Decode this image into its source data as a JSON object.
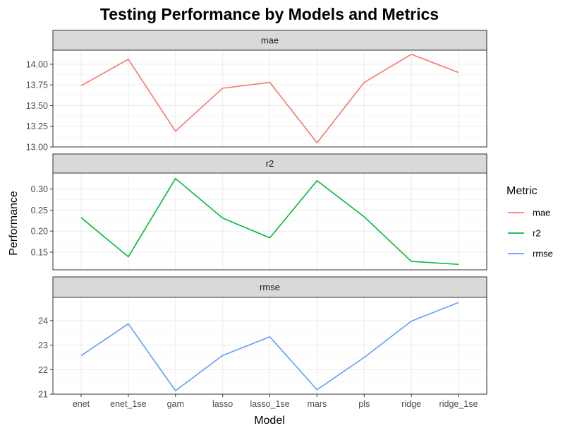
{
  "chart_data": {
    "type": "line",
    "title": "Testing Performance by Models and Metrics",
    "xlabel": "Model",
    "ylabel": "Performance",
    "categories": [
      "enet",
      "enet_1se",
      "gam",
      "lasso",
      "lasso_1se",
      "mars",
      "pls",
      "ridge",
      "ridge_1se"
    ],
    "legend": {
      "title": "Metric",
      "placement": "right"
    },
    "grid": true,
    "panels": [
      {
        "name": "mae",
        "color": "#F8766D",
        "values": [
          13.74,
          14.06,
          13.19,
          13.71,
          13.78,
          13.05,
          13.78,
          14.12,
          13.9
        ],
        "ylim": [
          13.0,
          14.17
        ],
        "yticks": [
          13.0,
          13.25,
          13.5,
          13.75,
          14.0
        ],
        "yticklabels": [
          "13.00",
          "13.25",
          "13.50",
          "13.75",
          "14.00"
        ]
      },
      {
        "name": "r2",
        "color": "#00BA38",
        "values": [
          0.232,
          0.139,
          0.325,
          0.231,
          0.184,
          0.32,
          0.234,
          0.128,
          0.121
        ],
        "ylim": [
          0.108,
          0.338
        ],
        "yticks": [
          0.15,
          0.2,
          0.25,
          0.3
        ],
        "yticklabels": [
          "0.15",
          "0.20",
          "0.25",
          "0.30"
        ]
      },
      {
        "name": "rmse",
        "color": "#619CFF",
        "values": [
          22.57,
          23.87,
          21.14,
          22.58,
          23.34,
          21.18,
          22.5,
          23.98,
          24.74
        ],
        "ylim": [
          21.0,
          24.95
        ],
        "yticks": [
          21,
          22,
          23,
          24
        ],
        "yticklabels": [
          "21",
          "22",
          "23",
          "24"
        ]
      }
    ]
  }
}
